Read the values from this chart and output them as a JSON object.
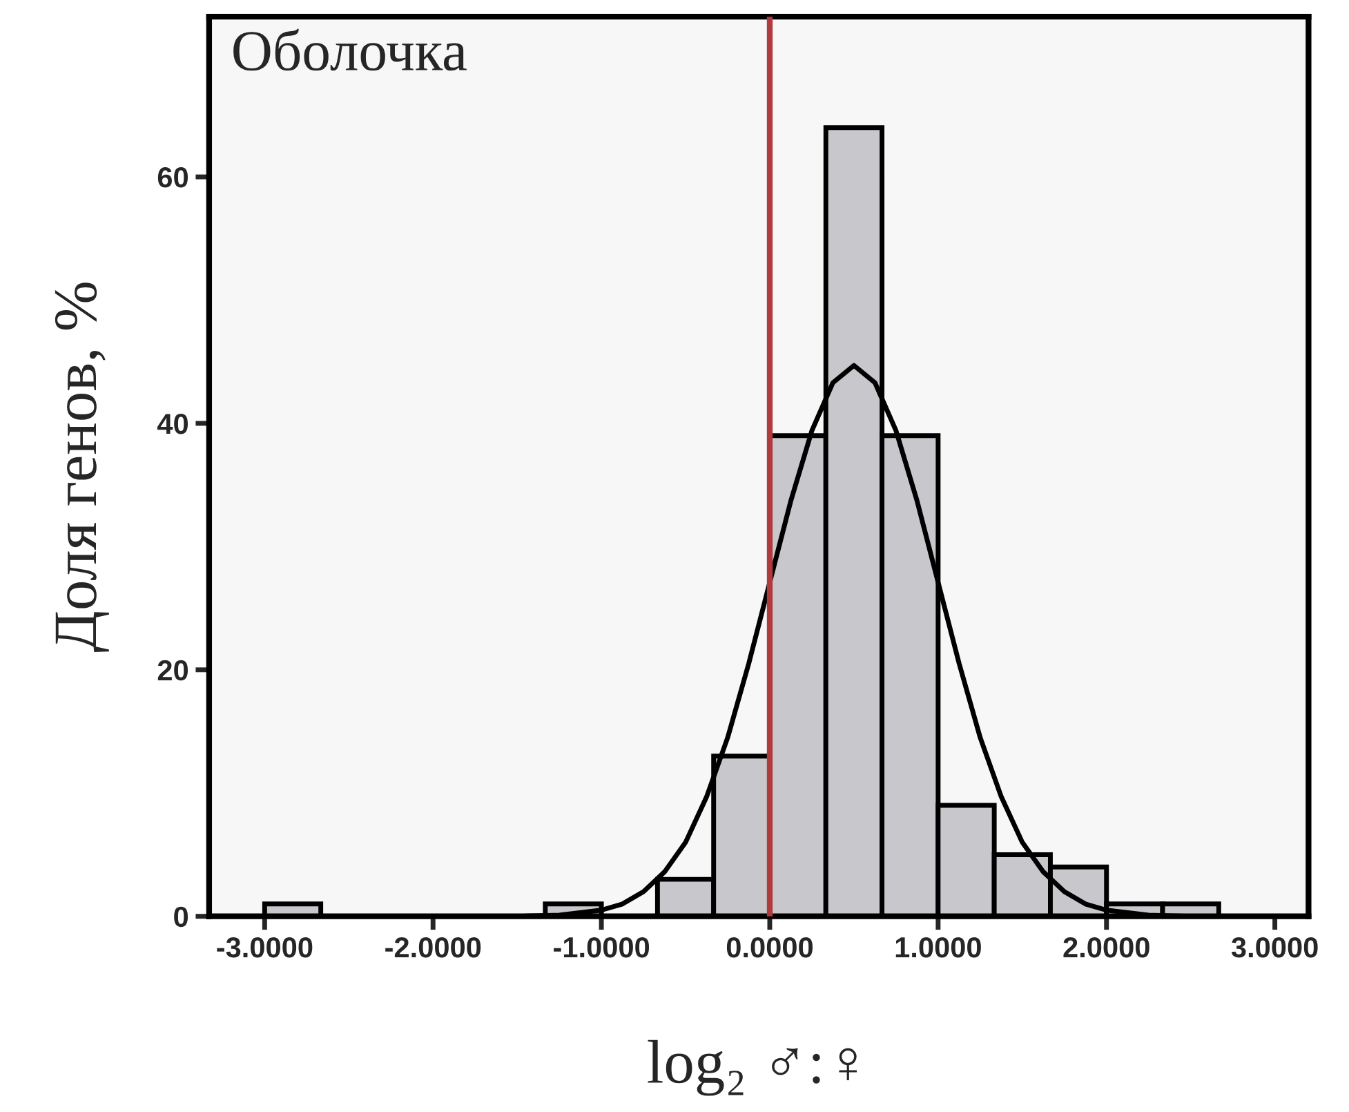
{
  "chart_data": {
    "type": "histogram",
    "ylabel": "Доля генов, %",
    "xlabel": "log₂ ♂:♀",
    "annotations": [
      "Оболочка"
    ],
    "bins": [
      -3.0,
      -2.6667,
      -2.3333,
      -2.0,
      -1.6667,
      -1.3333,
      -1.0,
      -0.6667,
      -0.3333,
      0.0,
      0.3333,
      0.6667,
      1.0,
      1.3333,
      1.6667,
      2.0,
      2.3333,
      2.6667
    ],
    "values": [
      1,
      0,
      0,
      0,
      0,
      1,
      0,
      3,
      13,
      39,
      64,
      39,
      9,
      5,
      4,
      1,
      1
    ],
    "color": "#c8c8cc",
    "series": [
      {
        "type": "line",
        "color": "#000000",
        "x": [
          -1.5,
          -1.25,
          -1.0,
          -0.875,
          -0.75,
          -0.625,
          -0.5,
          -0.375,
          -0.25,
          -0.125,
          0.0,
          0.125,
          0.25,
          0.375,
          0.5,
          0.625,
          0.75,
          0.875,
          1.0,
          1.125,
          1.25,
          1.375,
          1.5,
          1.625,
          1.75,
          1.875,
          2.0,
          2.25,
          2.5
        ],
        "values": [
          0,
          0.1,
          0.5,
          1.0,
          2.0,
          3.6,
          6.0,
          9.7,
          14.5,
          20.5,
          27.1,
          33.7,
          39.4,
          43.3,
          44.7,
          43.3,
          39.4,
          33.7,
          27.1,
          20.5,
          14.5,
          9.7,
          6.0,
          3.6,
          2.0,
          1.0,
          0.5,
          0.1,
          0
        ]
      }
    ],
    "ref_lines": [
      {
        "axis": "x",
        "value": 0,
        "color": "#b03a3e"
      }
    ],
    "xlim": [
      -3.33,
      3.2
    ],
    "ylim": [
      0,
      73
    ],
    "xticks": [
      {
        "value": -3,
        "label": "-3.0000"
      },
      {
        "value": -2,
        "label": "-2.0000"
      },
      {
        "value": -1,
        "label": "-1.0000"
      },
      {
        "value": 0,
        "label": "0.0000"
      },
      {
        "value": 1,
        "label": "1.0000"
      },
      {
        "value": 2,
        "label": "2.0000"
      },
      {
        "value": 3,
        "label": "3.0000"
      }
    ],
    "yticks": [
      0,
      20,
      40,
      60
    ],
    "grid": false,
    "legend": false
  }
}
